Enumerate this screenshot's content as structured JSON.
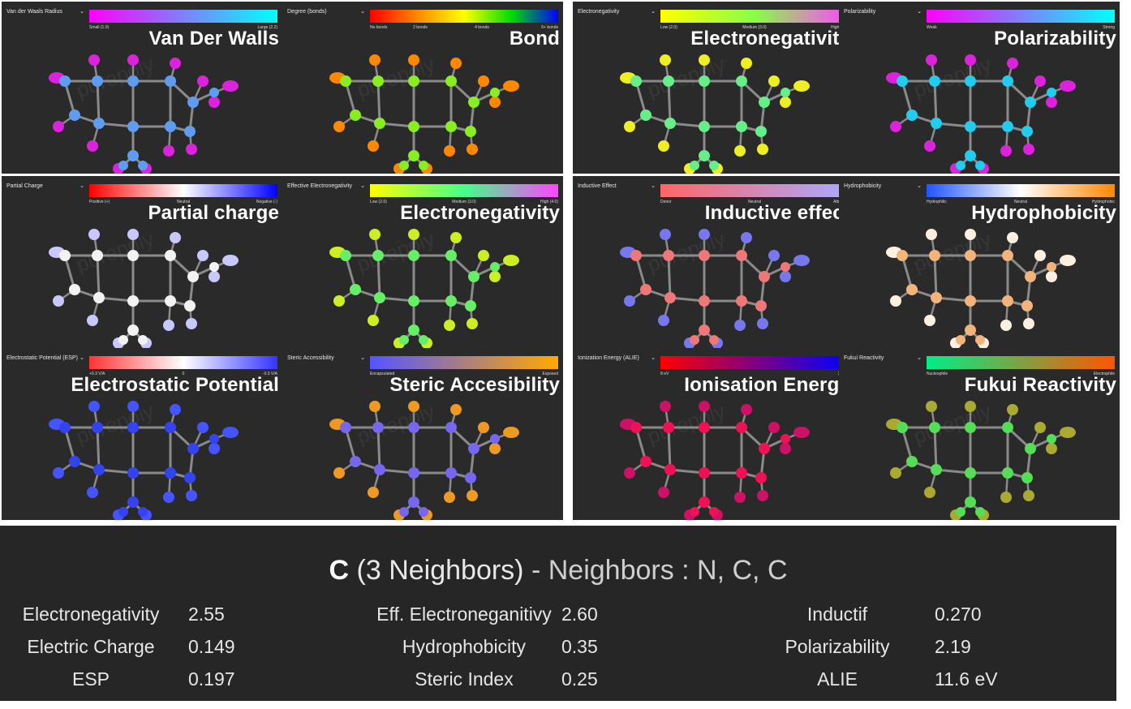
{
  "panels": [
    {
      "title": "Van Der Walls",
      "dropdown": "Van der Waals Radius",
      "gradient_colors": [
        "#ff00ff",
        "#00ffff"
      ],
      "legend": [
        "Small (1.0)",
        "",
        "Large (2.2)"
      ],
      "atom_color": "#5f9cf0",
      "h_color": "#dd22dd"
    },
    {
      "title": "Bond",
      "dropdown": "Degree (bonds)",
      "gradient_colors": [
        "#ff0000",
        "#ff8800",
        "#ffff00",
        "#00dd00",
        "#0000ff"
      ],
      "legend": [
        "No bonds",
        "2 bonds",
        "4 bonds",
        "6+ bonds"
      ],
      "atom_color": "#88ee22",
      "h_color": "#ff8800"
    },
    {
      "title": "Electronegativity",
      "dropdown": "Electronegativity",
      "gradient_colors": [
        "#ffff00",
        "#88ff44",
        "#ff44ff"
      ],
      "legend": [
        "Low (2.0)",
        "Medium (3.0)",
        "High (4.0)"
      ],
      "atom_color": "#66ee88",
      "h_color": "#eeee22"
    },
    {
      "title": "Polarizability",
      "dropdown": "Polarizability",
      "gradient_colors": [
        "#ff00ff",
        "#00ffff"
      ],
      "legend": [
        "Weak",
        "",
        "Strong"
      ],
      "atom_color": "#22ccee",
      "h_color": "#dd22dd"
    },
    {
      "title": "Partial charge",
      "dropdown": "Partial Charge",
      "gradient_colors": [
        "#ff0000",
        "#ffffff",
        "#0000ff"
      ],
      "legend": [
        "Positive (+)",
        "Neutral",
        "Negative (-)"
      ],
      "atom_color": "#f2f2f2",
      "h_color": "#c8c8ff"
    },
    {
      "title": "Electronegativity",
      "dropdown": "Effective Electronegativity",
      "gradient_colors": [
        "#ffff00",
        "#44ff88",
        "#ff44ff"
      ],
      "legend": [
        "Low (2.0)",
        "Medium (3.0)",
        "High (4.0)"
      ],
      "atom_color": "#66ee66",
      "h_color": "#ccee22"
    },
    {
      "title": "Inductive effect",
      "dropdown": "Inductive Effect",
      "gradient_colors": [
        "#ff6666",
        "#aaaaff"
      ],
      "legend": [
        "Donor",
        "Neutral",
        "Attractor"
      ],
      "atom_color": "#ee7777",
      "h_color": "#7777ee"
    },
    {
      "title": "Hydrophobicity",
      "dropdown": "Hydrophobicity",
      "gradient_colors": [
        "#2255ff",
        "#ffffff",
        "#ff8800"
      ],
      "legend": [
        "Hydrophilic",
        "Neutral",
        "Hydrophobic"
      ],
      "atom_color": "#f2b47a",
      "h_color": "#fff0e0"
    },
    {
      "title": "Electrostatic Potential",
      "dropdown": "Electrostatic Potential (ESP)",
      "gradient_colors": [
        "#ff3333",
        "#ffffff",
        "#3333ff"
      ],
      "legend": [
        "+0.3 V/A",
        "0",
        "-0.3 V/A"
      ],
      "atom_color": "#3344ee",
      "h_color": "#4455ff"
    },
    {
      "title": "Steric Accesibility",
      "dropdown": "Steric Accessibility",
      "gradient_colors": [
        "#5555ff",
        "#ffaa00"
      ],
      "legend": [
        "Encapsulated",
        "",
        "Exposed"
      ],
      "atom_color": "#7766ee",
      "h_color": "#ee9922"
    },
    {
      "title": "Ionisation Energy",
      "dropdown": "Ionization Energy (ALIE)",
      "gradient_colors": [
        "#ff0000",
        "#0000ff"
      ],
      "legend": [
        "8 eV",
        "",
        "20 eV"
      ],
      "atom_color": "#ee1155",
      "h_color": "#cc1166"
    },
    {
      "title": "Fukui Reactivity",
      "dropdown": "Fukui Reactivity",
      "gradient_colors": [
        "#00ee88",
        "#ff5500"
      ],
      "legend": [
        "Nucleophile",
        "",
        "Electrophile"
      ],
      "atom_color": "#55dd55",
      "h_color": "#aaaa33"
    }
  ],
  "watermark": "purepoly",
  "info": {
    "element": "C",
    "count": "(3 Neighbors)",
    "dash": "-",
    "neighbors": "Neighbors : N, C, C",
    "props": [
      {
        "name": "Electronegativity",
        "value": "2.55"
      },
      {
        "name": "Eff. Electroneganitivy",
        "value": "2.60"
      },
      {
        "name": "Inductif",
        "value": "0.270"
      },
      {
        "name": "Electric Charge",
        "value": "0.149"
      },
      {
        "name": "Hydrophobicity",
        "value": "0.35"
      },
      {
        "name": "Polarizability",
        "value": "2.19"
      },
      {
        "name": "ESP",
        "value": "0.197"
      },
      {
        "name": "Steric Index",
        "value": "0.25"
      },
      {
        "name": "ALIE",
        "value": "11.6 eV"
      }
    ]
  }
}
